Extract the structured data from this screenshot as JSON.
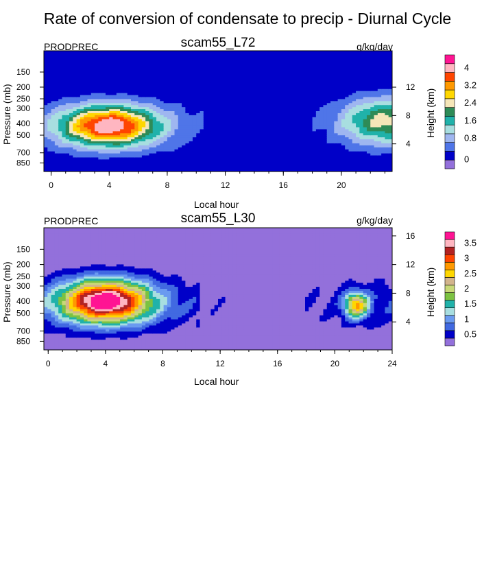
{
  "main_title": "Rate of conversion of condensate to precip - Diurnal Cycle",
  "chart_data": [
    {
      "type": "heatmap",
      "subtitle": "scam55_L72",
      "variable": "PRODPREC",
      "units": "g/kg/day",
      "xlabel": "Local hour",
      "ylabel": "Pressure (mb)",
      "ylabel_right": "Height (km)",
      "xlim": [
        -0.5,
        23.5
      ],
      "x_ticks": [
        0,
        4,
        8,
        12,
        16,
        20
      ],
      "y_ticks": [
        150,
        200,
        250,
        300,
        400,
        500,
        700,
        850
      ],
      "y_ticks_right": [
        4,
        8,
        12
      ],
      "colorbar": {
        "levels": [
          0,
          0.4,
          0.8,
          1.2,
          1.6,
          2.0,
          2.4,
          2.8,
          3.2,
          3.6,
          4.0
        ],
        "labels": [
          "0",
          "0.8",
          "1.6",
          "2.4",
          "3.2",
          "4"
        ],
        "colors": [
          "#9370DB",
          "#0000C8",
          "#4F75E8",
          "#9FB6F0",
          "#A8DEE0",
          "#20B2AA",
          "#2E8B57",
          "#F5E6B8",
          "#FFD700",
          "#FF9900",
          "#FF4500",
          "#FFB6C1",
          "#FF1493"
        ]
      },
      "features": [
        {
          "x_center": 4.0,
          "p_center": 420,
          "peak": 4.0,
          "width_hr": 3.2,
          "depth_mb": 170
        },
        {
          "x_center": 23.0,
          "p_center": 380,
          "peak": 2.2,
          "width_hr": 3.0,
          "depth_mb": 180
        }
      ]
    },
    {
      "type": "heatmap",
      "subtitle": "scam55_L30",
      "variable": "PRODPREC",
      "units": "g/kg/day",
      "xlabel": "Local hour",
      "ylabel": "Pressure (mb)",
      "ylabel_right": "Height (km)",
      "xlim": [
        -0.3,
        24
      ],
      "x_ticks": [
        0,
        4,
        8,
        12,
        16,
        20,
        24
      ],
      "y_ticks": [
        150,
        200,
        250,
        300,
        400,
        500,
        700,
        850
      ],
      "y_ticks_right": [
        4,
        8,
        12,
        16
      ],
      "colorbar": {
        "levels": [
          0.25,
          0.5,
          0.75,
          1.0,
          1.25,
          1.5,
          1.75,
          2.0,
          2.25,
          2.5,
          2.75,
          3.0,
          3.25,
          3.5
        ],
        "labels": [
          "0.5",
          "1",
          "1.5",
          "2",
          "2.5",
          "3",
          "3.5"
        ],
        "colors": [
          "#9370DB",
          "#0000C8",
          "#4169E1",
          "#6A9AF0",
          "#A8DEE0",
          "#20B2AA",
          "#7CC242",
          "#C8D878",
          "#D2B48C",
          "#FFD700",
          "#FF9900",
          "#FF4500",
          "#B22222",
          "#FFB6C1",
          "#FF1493"
        ]
      },
      "features": [
        {
          "x_center": 4.0,
          "p_center": 400,
          "peak": 3.5,
          "width_hr": 3.0,
          "depth_mb": 170
        },
        {
          "x_center": 21.5,
          "p_center": 430,
          "peak": 2.3,
          "width_hr": 0.8,
          "depth_mb": 110
        }
      ]
    }
  ]
}
